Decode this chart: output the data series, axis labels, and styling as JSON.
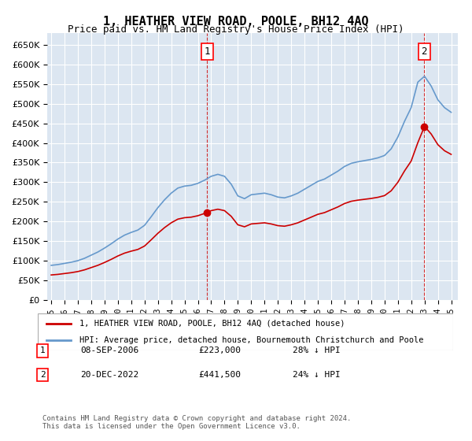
{
  "title": "1, HEATHER VIEW ROAD, POOLE, BH12 4AQ",
  "subtitle": "Price paid vs. HM Land Registry's House Price Index (HPI)",
  "legend_line1": "1, HEATHER VIEW ROAD, POOLE, BH12 4AQ (detached house)",
  "legend_line2": "HPI: Average price, detached house, Bournemouth Christchurch and Poole",
  "footer": "Contains HM Land Registry data © Crown copyright and database right 2024.\nThis data is licensed under the Open Government Licence v3.0.",
  "annotation1": {
    "label": "1",
    "date": "08-SEP-2006",
    "price": "£223,000",
    "hpi": "28% ↓ HPI",
    "x_year": 2006.69
  },
  "annotation2": {
    "label": "2",
    "date": "20-DEC-2022",
    "price": "£441,500",
    "hpi": "24% ↓ HPI",
    "x_year": 2022.97
  },
  "hpi_color": "#6699cc",
  "sale_color": "#cc0000",
  "background_color": "#dce6f1",
  "grid_color": "#ffffff",
  "ylim": [
    0,
    680000
  ],
  "yticks": [
    0,
    50000,
    100000,
    150000,
    200000,
    250000,
    300000,
    350000,
    400000,
    450000,
    500000,
    550000,
    600000,
    650000
  ],
  "xtick_years": [
    1995,
    1996,
    1997,
    1998,
    1999,
    2000,
    2001,
    2002,
    2003,
    2004,
    2005,
    2006,
    2007,
    2008,
    2009,
    2010,
    2011,
    2012,
    2013,
    2014,
    2015,
    2016,
    2017,
    2018,
    2019,
    2020,
    2021,
    2022,
    2023,
    2024,
    2025
  ]
}
